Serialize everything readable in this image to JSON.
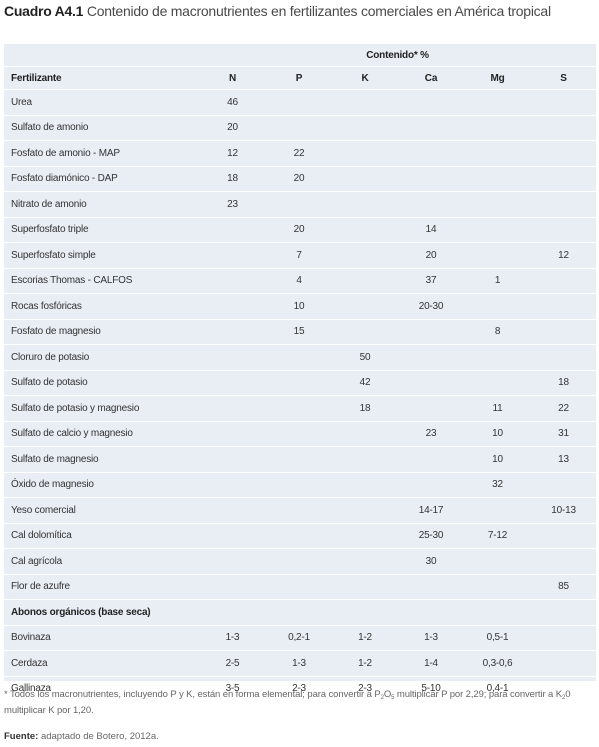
{
  "title": {
    "label": "Cuadro A4.1",
    "text": "Contenido de macronutrientes en fertilizantes comerciales en América tropical"
  },
  "table": {
    "super_header": "Contenido* %",
    "columns": [
      "Fertilizante",
      "N",
      "P",
      "K",
      "Ca",
      "Mg",
      "S"
    ],
    "rows": [
      [
        "Urea",
        "46",
        "",
        "",
        "",
        "",
        ""
      ],
      [
        "Sulfato de amonio",
        "20",
        "",
        "",
        "",
        "",
        ""
      ],
      [
        "Fosfato de amonio - MAP",
        "12",
        "22",
        "",
        "",
        "",
        ""
      ],
      [
        "Fosfato diamónico - DAP",
        "18",
        "20",
        "",
        "",
        "",
        ""
      ],
      [
        "Nitrato de amonio",
        "23",
        "",
        "",
        "",
        "",
        ""
      ],
      [
        "Superfosfato triple",
        "",
        "20",
        "",
        "14",
        "",
        ""
      ],
      [
        "Superfosfato simple",
        "",
        "7",
        "",
        "20",
        "",
        "12"
      ],
      [
        "Escorias Thomas - CALFOS",
        "",
        "4",
        "",
        "37",
        "1",
        ""
      ],
      [
        "Rocas fosfóricas",
        "",
        "10",
        "",
        "20-30",
        "",
        ""
      ],
      [
        "Fosfato de magnesio",
        "",
        "15",
        "",
        "",
        "8",
        ""
      ],
      [
        "Cloruro de potasio",
        "",
        "",
        "50",
        "",
        "",
        ""
      ],
      [
        "Sulfato de potasio",
        "",
        "",
        "42",
        "",
        "",
        "18"
      ],
      [
        "Sulfato de potasio y magnesio",
        "",
        "",
        "18",
        "",
        "11",
        "22"
      ],
      [
        "Sulfato de calcio y magnesio",
        "",
        "",
        "",
        "23",
        "10",
        "31"
      ],
      [
        "Sulfato de magnesio",
        "",
        "",
        "",
        "",
        "10",
        "13"
      ],
      [
        "Óxido de magnesio",
        "",
        "",
        "",
        "",
        "32",
        ""
      ],
      [
        "Yeso comercial",
        "",
        "",
        "",
        "14-17",
        "",
        "10-13"
      ],
      [
        "Cal dolomítica",
        "",
        "",
        "",
        "25-30",
        "7-12",
        ""
      ],
      [
        "Cal agrícola",
        "",
        "",
        "",
        "30",
        "",
        ""
      ],
      [
        "Flor de azufre",
        "",
        "",
        "",
        "",
        "",
        "85"
      ]
    ],
    "section_title": "Abonos orgánicos (base seca)",
    "organic_rows": [
      [
        "Bovinaza",
        "1-3",
        "0,2-1",
        "1-2",
        "1-3",
        "0,5-1",
        ""
      ],
      [
        "Cerdaza",
        "2-5",
        "1-3",
        "1-2",
        "1-4",
        "0,3-0,6",
        ""
      ],
      [
        "Gallinaza",
        "3-5",
        "2-3",
        "2-3",
        "5-10",
        "0,4-1",
        ""
      ]
    ]
  },
  "footnote": {
    "part1": "* Todos los macronutrientes, incluyendo P y K, están en forma elemental; para convertir a P",
    "sub1": "2",
    "part2": "O",
    "sub2": "5",
    "part3": " multiplicar P por 2,29; para convertir a K",
    "sub3": "2",
    "part4": "0 multiplicar K por 1,20."
  },
  "source": {
    "label": "Fuente:",
    "text": " adaptado de Botero, 2012a."
  },
  "colors": {
    "table_background": "#e9eef5",
    "row_separator": "#ffffff",
    "text": "#333333",
    "muted_text": "#666666"
  }
}
